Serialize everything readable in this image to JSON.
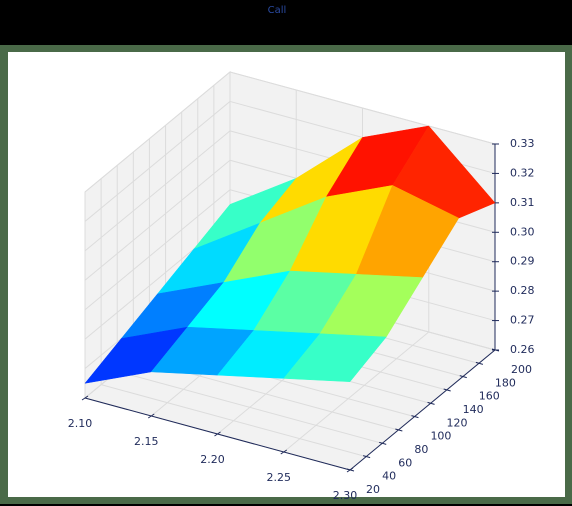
{
  "chart_data": {
    "type": "surface",
    "title": "Call",
    "colormap": "jet",
    "x": [
      2.1,
      2.15,
      2.2,
      2.25,
      2.3
    ],
    "y": [
      20,
      65,
      110,
      155,
      200
    ],
    "z": [
      [
        0.265,
        0.275,
        0.28,
        0.285,
        0.29
      ],
      [
        0.27,
        0.28,
        0.285,
        0.29,
        0.295
      ],
      [
        0.275,
        0.285,
        0.295,
        0.3,
        0.305
      ],
      [
        0.28,
        0.295,
        0.31,
        0.32,
        0.315
      ],
      [
        0.285,
        0.3,
        0.32,
        0.33,
        0.31
      ]
    ],
    "xlim": [
      2.1,
      2.3
    ],
    "ylim": [
      20,
      200
    ],
    "zlim": [
      0.26,
      0.33
    ],
    "xticks": [
      {
        "value": 2.1,
        "label": "2.10"
      },
      {
        "value": 2.15,
        "label": "2.15"
      },
      {
        "value": 2.2,
        "label": "2.20"
      },
      {
        "value": 2.25,
        "label": "2.25"
      },
      {
        "value": 2.3,
        "label": "2.30"
      }
    ],
    "yticks": [
      20,
      40,
      60,
      80,
      100,
      120,
      140,
      160,
      180,
      200
    ],
    "zticks": [
      0.26,
      0.27,
      0.28,
      0.29,
      {
        "value": 0.3,
        "label": "0.30"
      },
      0.31,
      0.32,
      0.33
    ],
    "grid": true
  }
}
